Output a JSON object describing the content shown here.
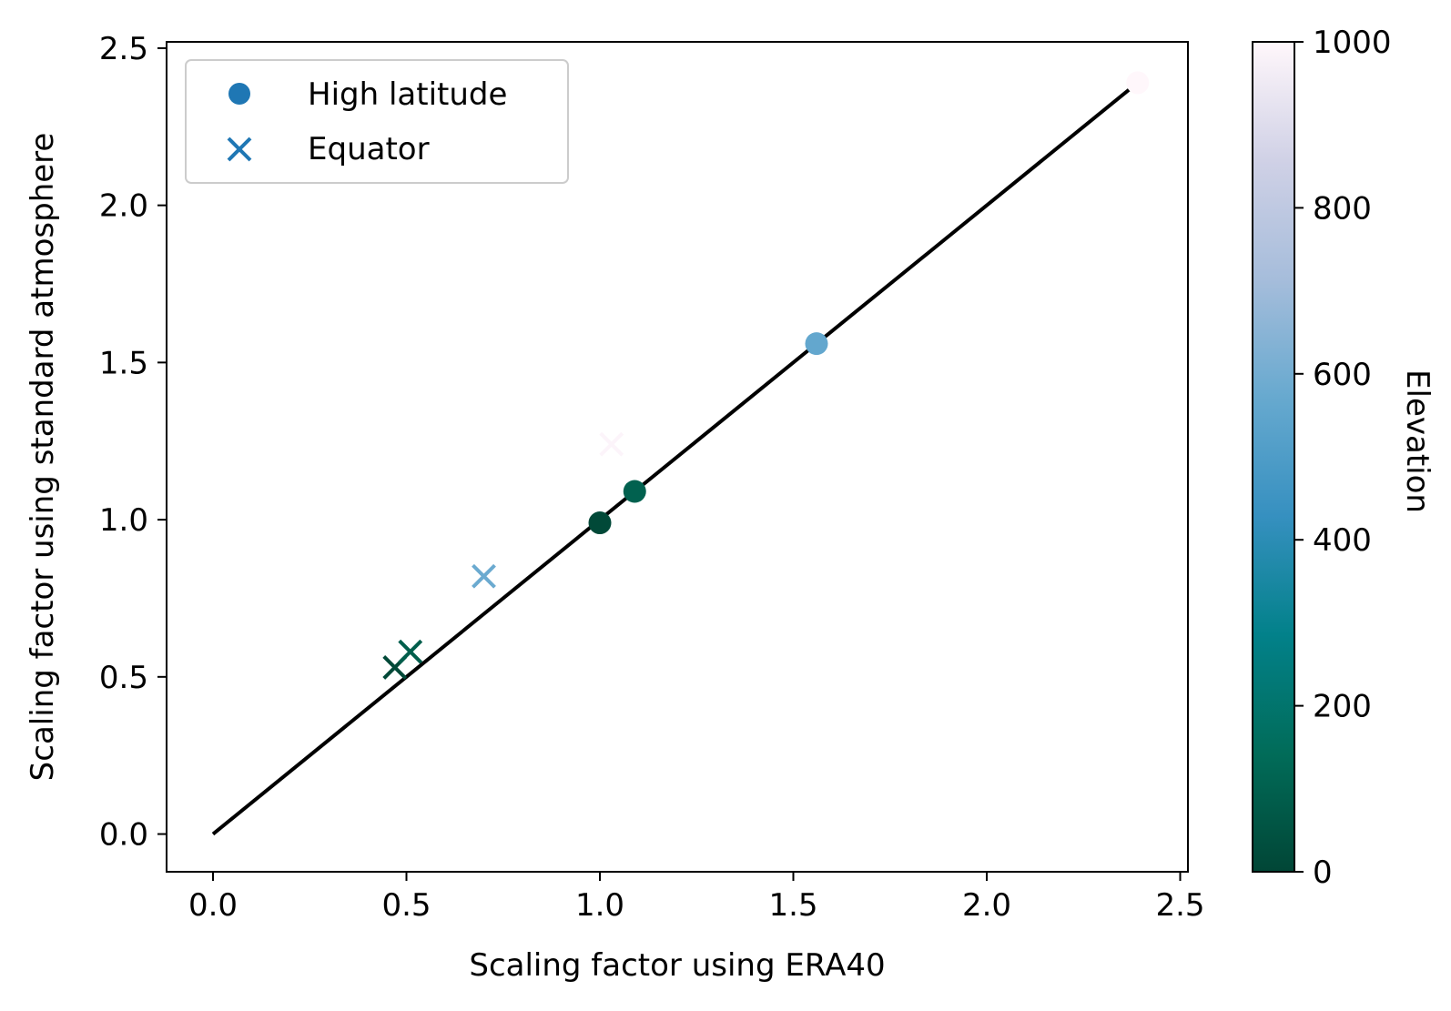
{
  "chart_data": {
    "type": "scatter",
    "xlabel": "Scaling factor using ERA40",
    "ylabel": "Scaling factor using standard atmosphere",
    "xlim": [
      -0.12,
      2.52
    ],
    "ylim": [
      -0.12,
      2.52
    ],
    "xticks": [
      "0.0",
      "0.5",
      "1.0",
      "1.5",
      "2.0",
      "2.5"
    ],
    "yticks": [
      "0.0",
      "0.5",
      "1.0",
      "1.5",
      "2.0",
      "2.5"
    ],
    "grid": false,
    "legend_position": "top-left",
    "legend_color": "#1f77b4",
    "series": [
      {
        "name": "High latitude",
        "marker": "circle",
        "points": [
          {
            "x": 1.0,
            "y": 0.99,
            "elevation": 10
          },
          {
            "x": 1.09,
            "y": 1.09,
            "elevation": 100
          },
          {
            "x": 1.56,
            "y": 1.56,
            "elevation": 560
          },
          {
            "x": 2.39,
            "y": 2.39,
            "elevation": 1000
          }
        ]
      },
      {
        "name": "Equator",
        "marker": "x",
        "points": [
          {
            "x": 0.47,
            "y": 0.53,
            "elevation": 10
          },
          {
            "x": 0.51,
            "y": 0.58,
            "elevation": 90
          },
          {
            "x": 0.7,
            "y": 0.82,
            "elevation": 580
          },
          {
            "x": 1.03,
            "y": 1.24,
            "elevation": 990
          }
        ]
      }
    ],
    "reference_line": {
      "x": [
        0.0,
        2.4
      ],
      "y": [
        0.0,
        2.4
      ],
      "color": "#000000"
    },
    "colorbar": {
      "label": "Elevation",
      "range": [
        0,
        1000
      ],
      "ticks": [
        "0",
        "200",
        "400",
        "600",
        "800",
        "1000"
      ],
      "colormap": [
        "#014636",
        "#016c59",
        "#02818a",
        "#3690c0",
        "#67a9cf",
        "#a6bddb",
        "#d0d1e6",
        "#fff7fb"
      ]
    }
  }
}
